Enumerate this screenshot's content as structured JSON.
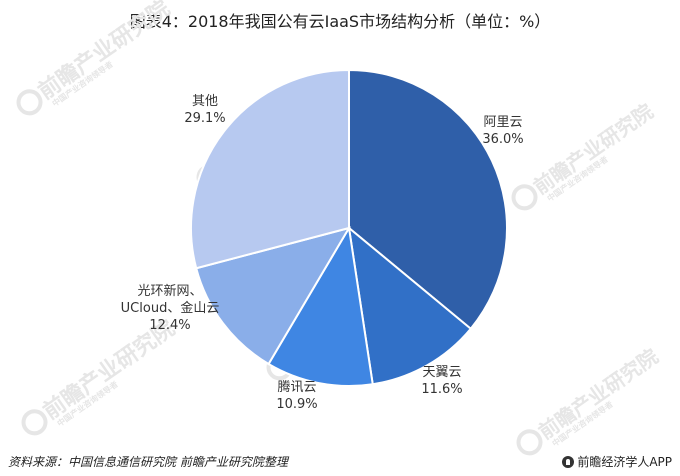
{
  "title": "图表4：2018年我国公有云IaaS市场结构分析（单位：%）",
  "chart_data": {
    "type": "pie",
    "title": "图表4：2018年我国公有云IaaS市场结构分析（单位：%）",
    "slices": [
      {
        "label": "阿里云",
        "value": 36.0,
        "display": "36.0%",
        "color": "#2f5fa9"
      },
      {
        "label": "天翼云",
        "value": 11.6,
        "display": "11.6%",
        "color": "#3170c7"
      },
      {
        "label": "腾讯云",
        "value": 10.9,
        "display": "10.9%",
        "color": "#3f86e3"
      },
      {
        "label": "光环新网、UCloud、金山云",
        "value": 12.4,
        "display": "12.4%",
        "color": "#8aaee9"
      },
      {
        "label": "其他",
        "value": 29.1,
        "display": "29.1%",
        "color": "#b7c9f0"
      }
    ],
    "start_direction": "12 o'clock",
    "rotation": "clockwise"
  },
  "watermark": {
    "text": "前瞻产业研究院",
    "subtext": "中国产业咨询领导者"
  },
  "footer": {
    "source": "资料来源：中国信息通信研究院 前瞻产业研究院整理",
    "brand": "前瞻经济学人APP"
  }
}
